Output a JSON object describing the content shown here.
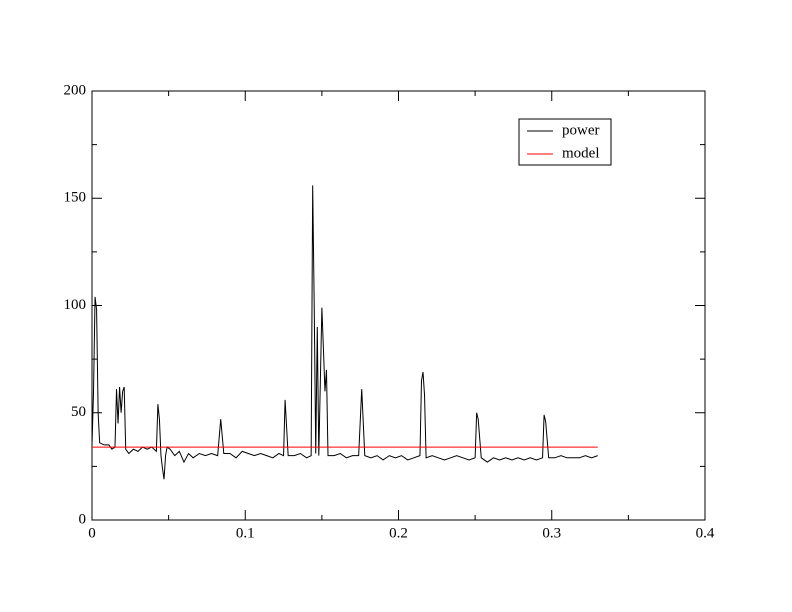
{
  "chart_data": {
    "type": "line",
    "xlim": [
      0,
      0.4
    ],
    "ylim": [
      0,
      200
    ],
    "xticks": [
      0,
      0.1,
      0.2,
      0.3,
      0.4
    ],
    "yticks": [
      0,
      50,
      100,
      150,
      200
    ],
    "xminorticks": [
      0.05,
      0.15,
      0.25,
      0.35
    ],
    "yminorticks": [
      25,
      75,
      125,
      175
    ],
    "legend": "upper right",
    "series": [
      {
        "name": "power",
        "color": "#000000",
        "x": [
          0,
          0.001,
          0.002,
          0.003,
          0.004,
          0.005,
          0.008,
          0.011,
          0.013,
          0.015,
          0.016,
          0.017,
          0.018,
          0.019,
          0.02,
          0.021,
          0.022,
          0.024,
          0.027,
          0.03,
          0.033,
          0.036,
          0.039,
          0.042,
          0.043,
          0.044,
          0.045,
          0.046,
          0.047,
          0.048,
          0.049,
          0.051,
          0.054,
          0.057,
          0.06,
          0.063,
          0.066,
          0.07,
          0.074,
          0.078,
          0.082,
          0.084,
          0.086,
          0.09,
          0.094,
          0.098,
          0.102,
          0.106,
          0.11,
          0.114,
          0.118,
          0.122,
          0.125,
          0.126,
          0.128,
          0.132,
          0.136,
          0.14,
          0.143,
          0.144,
          0.145,
          0.146,
          0.147,
          0.148,
          0.15,
          0.151,
          0.152,
          0.153,
          0.154,
          0.158,
          0.162,
          0.166,
          0.17,
          0.174,
          0.176,
          0.178,
          0.182,
          0.186,
          0.19,
          0.194,
          0.198,
          0.202,
          0.206,
          0.21,
          0.214,
          0.215,
          0.216,
          0.217,
          0.218,
          0.222,
          0.226,
          0.23,
          0.234,
          0.238,
          0.242,
          0.246,
          0.25,
          0.251,
          0.252,
          0.254,
          0.258,
          0.262,
          0.266,
          0.27,
          0.274,
          0.278,
          0.282,
          0.286,
          0.29,
          0.294,
          0.295,
          0.296,
          0.298,
          0.302,
          0.306,
          0.31,
          0.314,
          0.318,
          0.322,
          0.326,
          0.33
        ],
        "values": [
          35,
          60,
          104,
          98,
          50,
          36,
          35,
          35,
          33,
          34,
          61,
          45,
          62,
          50,
          60,
          62,
          33,
          31,
          33,
          32,
          34,
          33,
          34,
          32,
          54,
          47,
          30,
          24,
          19,
          30,
          34,
          33,
          30,
          32,
          27,
          31,
          29,
          31,
          30,
          31,
          30,
          47,
          31,
          31,
          29,
          32,
          31,
          30,
          31,
          30,
          29,
          31,
          30,
          56,
          30,
          30,
          31,
          29,
          30,
          156,
          100,
          31,
          90,
          30,
          99,
          80,
          60,
          70,
          30,
          30,
          31,
          29,
          30,
          30,
          61,
          30,
          29,
          30,
          28,
          30,
          29,
          30,
          28,
          29,
          30,
          65,
          69,
          58,
          29,
          30,
          29,
          28,
          29,
          30,
          29,
          28,
          29,
          50,
          47,
          29,
          27,
          29,
          28,
          29,
          28,
          29,
          28,
          29,
          28,
          29,
          49,
          46,
          29,
          29,
          30,
          29,
          29,
          29,
          30,
          29,
          30
        ]
      },
      {
        "name": "model",
        "color": "#ff0000",
        "x": [
          0,
          0.33
        ],
        "values": [
          34,
          34
        ]
      }
    ]
  }
}
